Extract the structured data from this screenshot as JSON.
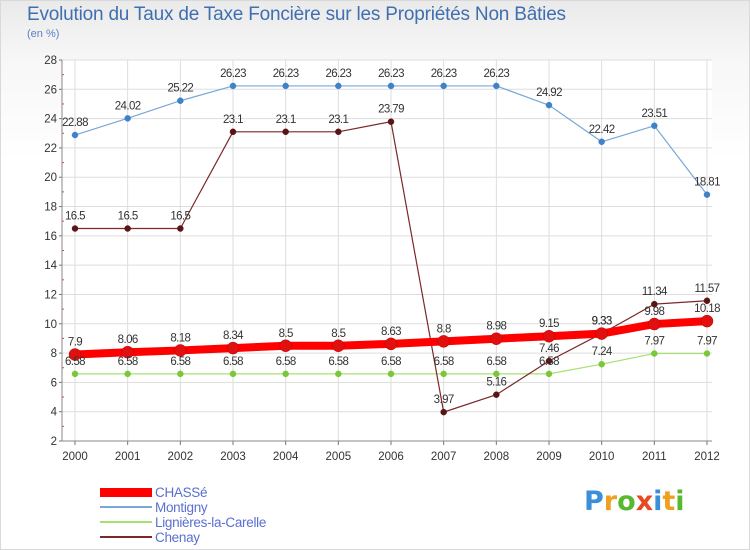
{
  "chart_data": {
    "type": "line",
    "title": "Evolution du Taux de Taxe Foncière sur les Propriétés Non Bâties",
    "ylabel": "(en %)",
    "xlabel": "",
    "categories": [
      "2000",
      "2001",
      "2002",
      "2003",
      "2004",
      "2005",
      "2006",
      "2007",
      "2008",
      "2009",
      "2010",
      "2011",
      "2012"
    ],
    "ylim": [
      2,
      28
    ],
    "yticks": [
      2,
      4,
      6,
      8,
      10,
      12,
      14,
      16,
      18,
      20,
      22,
      24,
      26,
      28
    ],
    "grid": true,
    "series": [
      {
        "name": "CHASSé",
        "color": "#ff0000",
        "point_color": "#e01010",
        "values": [
          7.9,
          8.06,
          8.18,
          8.34,
          8.5,
          8.5,
          8.63,
          8.8,
          8.98,
          9.15,
          9.33,
          9.98,
          10.18
        ],
        "labels": [
          "7.9",
          "8.06",
          "8.18",
          "8.34",
          "8.5",
          "8.5",
          "8.63",
          "8.8",
          "8.98",
          "9.15",
          "9.33",
          "9.98",
          "10.18"
        ]
      },
      {
        "name": "Montigny",
        "color": "#78a8d8",
        "point_color": "#3f82c8",
        "values": [
          22.88,
          24.02,
          25.22,
          26.23,
          26.23,
          26.23,
          26.23,
          26.23,
          26.23,
          24.92,
          22.42,
          23.51,
          18.81
        ],
        "labels": [
          "22.88",
          "24.02",
          "25.22",
          "26.23",
          "26.23",
          "26.23",
          "26.23",
          "26.23",
          "26.23",
          "24.92",
          "22.42",
          "23.51",
          "18.81"
        ]
      },
      {
        "name": "Lignières-la-Carelle",
        "color": "#a8e070",
        "point_color": "#78c838",
        "values": [
          6.58,
          6.58,
          6.58,
          6.58,
          6.58,
          6.58,
          6.58,
          6.58,
          6.58,
          6.58,
          7.24,
          7.97,
          7.97
        ],
        "labels": [
          "6.58",
          "6.58",
          "6.58",
          "6.58",
          "6.58",
          "6.58",
          "6.58",
          "6.58",
          "6.58",
          "6.58",
          "7.24",
          "7.97",
          "7.97"
        ]
      },
      {
        "name": "Chenay",
        "color": "#7a2828",
        "point_color": "#5a1414",
        "values": [
          16.5,
          16.5,
          16.5,
          23.1,
          23.1,
          23.1,
          23.79,
          3.97,
          5.16,
          7.46,
          9.33,
          11.34,
          11.57
        ],
        "labels": [
          "16.5",
          "16.5",
          "16.5",
          "23.1",
          "23.1",
          "23.1",
          "23.79",
          "3.97",
          "5.16",
          "7.46",
          "9.33",
          "11.34",
          "11.57"
        ]
      }
    ]
  },
  "logo": {
    "letters": [
      "P",
      "r",
      "o",
      "x",
      "i",
      "t",
      "i"
    ],
    "colors": [
      "#3a8fd8",
      "#f0a020",
      "#58b830",
      "#e84a20",
      "#3a8fd8",
      "#f0a020",
      "#58b830"
    ]
  }
}
